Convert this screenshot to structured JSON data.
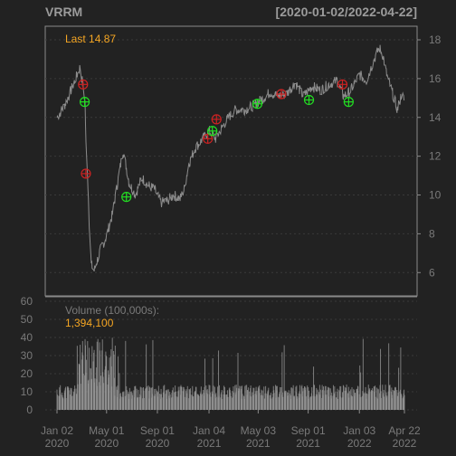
{
  "chart_data": {
    "type": "line",
    "title": "VRRM",
    "date_range": "[2020-01-02/2022-04-22]",
    "last_label": "Last",
    "last_value": "14.87",
    "price_axis": {
      "ylim": [
        4.8,
        18.7
      ],
      "ticks": [
        6,
        8,
        10,
        12,
        14,
        16,
        18
      ]
    },
    "price_series": [
      [
        "2020-01-02",
        14.0
      ],
      [
        "2020-01-20",
        14.6
      ],
      [
        "2020-02-05",
        15.4
      ],
      [
        "2020-02-18",
        16.1
      ],
      [
        "2020-02-27",
        16.6
      ],
      [
        "2020-03-05",
        15.6
      ],
      [
        "2020-03-10",
        14.8
      ],
      [
        "2020-03-12",
        12.6
      ],
      [
        "2020-03-16",
        11.1
      ],
      [
        "2020-03-20",
        8.6
      ],
      [
        "2020-03-25",
        6.4
      ],
      [
        "2020-04-01",
        6.1
      ],
      [
        "2020-04-15",
        7.1
      ],
      [
        "2020-05-01",
        7.9
      ],
      [
        "2020-05-15",
        9.0
      ],
      [
        "2020-06-01",
        11.2
      ],
      [
        "2020-06-10",
        12.3
      ],
      [
        "2020-06-25",
        10.6
      ],
      [
        "2020-07-10",
        10.0
      ],
      [
        "2020-07-25",
        10.9
      ],
      [
        "2020-08-10",
        10.5
      ],
      [
        "2020-08-25",
        10.3
      ],
      [
        "2020-09-10",
        9.6
      ],
      [
        "2020-09-25",
        9.7
      ],
      [
        "2020-10-10",
        10.0
      ],
      [
        "2020-10-26",
        9.8
      ],
      [
        "2020-11-05",
        10.3
      ],
      [
        "2020-11-16",
        11.6
      ],
      [
        "2020-12-01",
        12.4
      ],
      [
        "2020-12-20",
        12.9
      ],
      [
        "2021-01-05",
        13.3
      ],
      [
        "2021-01-20",
        12.9
      ],
      [
        "2021-02-05",
        13.5
      ],
      [
        "2021-02-20",
        14.0
      ],
      [
        "2021-03-10",
        14.4
      ],
      [
        "2021-04-01",
        14.4
      ],
      [
        "2021-04-20",
        14.6
      ],
      [
        "2021-05-10",
        14.9
      ],
      [
        "2021-06-01",
        15.3
      ],
      [
        "2021-06-20",
        15.1
      ],
      [
        "2021-07-10",
        15.2
      ],
      [
        "2021-08-01",
        15.8
      ],
      [
        "2021-08-20",
        15.1
      ],
      [
        "2021-09-10",
        15.6
      ],
      [
        "2021-10-01",
        15.4
      ],
      [
        "2021-10-20",
        15.7
      ],
      [
        "2021-11-10",
        15.9
      ],
      [
        "2021-11-25",
        15.1
      ],
      [
        "2021-12-10",
        15.3
      ],
      [
        "2022-01-03",
        16.2
      ],
      [
        "2022-01-20",
        15.9
      ],
      [
        "2022-02-08",
        17.0
      ],
      [
        "2022-02-20",
        17.6
      ],
      [
        "2022-03-01",
        17.2
      ],
      [
        "2022-03-10",
        16.2
      ],
      [
        "2022-03-25",
        15.2
      ],
      [
        "2022-04-05",
        14.4
      ],
      [
        "2022-04-15",
        15.2
      ],
      [
        "2022-04-22",
        14.87
      ]
    ],
    "signals": {
      "buy": [
        [
          "2020-03-09",
          14.8
        ],
        [
          "2020-06-18",
          9.9
        ],
        [
          "2021-01-12",
          13.3
        ],
        [
          "2021-05-01",
          14.7
        ],
        [
          "2021-09-03",
          14.9
        ],
        [
          "2021-12-08",
          14.8
        ]
      ],
      "sell": [
        [
          "2020-03-05",
          15.7
        ],
        [
          "2020-03-12",
          11.1
        ],
        [
          "2021-01-01",
          12.9
        ],
        [
          "2021-01-22",
          13.9
        ],
        [
          "2021-06-28",
          15.2
        ],
        [
          "2021-11-23",
          15.7
        ]
      ]
    },
    "volume_axis": {
      "ylim": [
        0,
        60
      ],
      "ticks": [
        0,
        10,
        20,
        30,
        40,
        50,
        60
      ]
    },
    "volume_label": "Volume (100,000s):",
    "volume_last": "1,394,100",
    "x_axis": {
      "start": "2020-01-02",
      "end": "2022-04-22",
      "ticks": [
        {
          "date": "2020-01-02",
          "label": "Jan 02",
          "year": "2020"
        },
        {
          "date": "2020-05-01",
          "label": "May 01",
          "year": "2020"
        },
        {
          "date": "2020-09-01",
          "label": "Sep 01",
          "year": "2020"
        },
        {
          "date": "2021-01-04",
          "label": "Jan 04",
          "year": "2021"
        },
        {
          "date": "2021-05-03",
          "label": "May 03",
          "year": "2021"
        },
        {
          "date": "2021-09-01",
          "label": "Sep 01",
          "year": "2021"
        },
        {
          "date": "2022-01-03",
          "label": "Jan 03",
          "year": "2022"
        },
        {
          "date": "2022-04-22",
          "label": "Apr 22",
          "year": "2022"
        }
      ]
    },
    "colors": {
      "background": "#222222",
      "frame": "#8a8a8a",
      "grid": "#3a3a3a",
      "price_line": "#8c8c8c",
      "buy": "#22dd22",
      "sell": "#cc2222",
      "volume": "#9a9a9a",
      "accent": "#f5a623",
      "title": "#9b9b9b",
      "muted": "#7a7a7a"
    }
  }
}
